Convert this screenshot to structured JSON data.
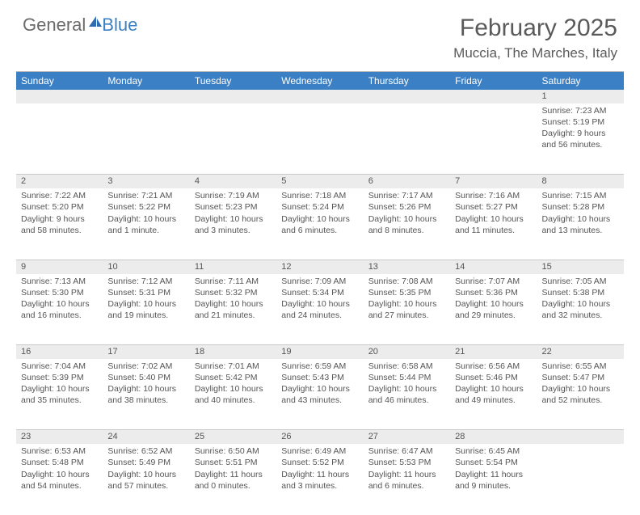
{
  "logo": {
    "text1": "General",
    "text2": "Blue"
  },
  "title": "February 2025",
  "location": "Muccia, The Marches, Italy",
  "weekdays": [
    "Sunday",
    "Monday",
    "Tuesday",
    "Wednesday",
    "Thursday",
    "Friday",
    "Saturday"
  ],
  "colors": {
    "header_bg": "#3b7fc4",
    "header_text": "#ffffff",
    "daynum_bg": "#ececec",
    "text": "#555555",
    "logo_gray": "#6b6b6b",
    "logo_blue": "#3b7fc4"
  },
  "weeks": [
    {
      "nums": [
        "",
        "",
        "",
        "",
        "",
        "",
        "1"
      ],
      "cells": [
        null,
        null,
        null,
        null,
        null,
        null,
        {
          "sunrise": "Sunrise: 7:23 AM",
          "sunset": "Sunset: 5:19 PM",
          "dl1": "Daylight: 9 hours",
          "dl2": "and 56 minutes."
        }
      ]
    },
    {
      "nums": [
        "2",
        "3",
        "4",
        "5",
        "6",
        "7",
        "8"
      ],
      "cells": [
        {
          "sunrise": "Sunrise: 7:22 AM",
          "sunset": "Sunset: 5:20 PM",
          "dl1": "Daylight: 9 hours",
          "dl2": "and 58 minutes."
        },
        {
          "sunrise": "Sunrise: 7:21 AM",
          "sunset": "Sunset: 5:22 PM",
          "dl1": "Daylight: 10 hours",
          "dl2": "and 1 minute."
        },
        {
          "sunrise": "Sunrise: 7:19 AM",
          "sunset": "Sunset: 5:23 PM",
          "dl1": "Daylight: 10 hours",
          "dl2": "and 3 minutes."
        },
        {
          "sunrise": "Sunrise: 7:18 AM",
          "sunset": "Sunset: 5:24 PM",
          "dl1": "Daylight: 10 hours",
          "dl2": "and 6 minutes."
        },
        {
          "sunrise": "Sunrise: 7:17 AM",
          "sunset": "Sunset: 5:26 PM",
          "dl1": "Daylight: 10 hours",
          "dl2": "and 8 minutes."
        },
        {
          "sunrise": "Sunrise: 7:16 AM",
          "sunset": "Sunset: 5:27 PM",
          "dl1": "Daylight: 10 hours",
          "dl2": "and 11 minutes."
        },
        {
          "sunrise": "Sunrise: 7:15 AM",
          "sunset": "Sunset: 5:28 PM",
          "dl1": "Daylight: 10 hours",
          "dl2": "and 13 minutes."
        }
      ]
    },
    {
      "nums": [
        "9",
        "10",
        "11",
        "12",
        "13",
        "14",
        "15"
      ],
      "cells": [
        {
          "sunrise": "Sunrise: 7:13 AM",
          "sunset": "Sunset: 5:30 PM",
          "dl1": "Daylight: 10 hours",
          "dl2": "and 16 minutes."
        },
        {
          "sunrise": "Sunrise: 7:12 AM",
          "sunset": "Sunset: 5:31 PM",
          "dl1": "Daylight: 10 hours",
          "dl2": "and 19 minutes."
        },
        {
          "sunrise": "Sunrise: 7:11 AM",
          "sunset": "Sunset: 5:32 PM",
          "dl1": "Daylight: 10 hours",
          "dl2": "and 21 minutes."
        },
        {
          "sunrise": "Sunrise: 7:09 AM",
          "sunset": "Sunset: 5:34 PM",
          "dl1": "Daylight: 10 hours",
          "dl2": "and 24 minutes."
        },
        {
          "sunrise": "Sunrise: 7:08 AM",
          "sunset": "Sunset: 5:35 PM",
          "dl1": "Daylight: 10 hours",
          "dl2": "and 27 minutes."
        },
        {
          "sunrise": "Sunrise: 7:07 AM",
          "sunset": "Sunset: 5:36 PM",
          "dl1": "Daylight: 10 hours",
          "dl2": "and 29 minutes."
        },
        {
          "sunrise": "Sunrise: 7:05 AM",
          "sunset": "Sunset: 5:38 PM",
          "dl1": "Daylight: 10 hours",
          "dl2": "and 32 minutes."
        }
      ]
    },
    {
      "nums": [
        "16",
        "17",
        "18",
        "19",
        "20",
        "21",
        "22"
      ],
      "cells": [
        {
          "sunrise": "Sunrise: 7:04 AM",
          "sunset": "Sunset: 5:39 PM",
          "dl1": "Daylight: 10 hours",
          "dl2": "and 35 minutes."
        },
        {
          "sunrise": "Sunrise: 7:02 AM",
          "sunset": "Sunset: 5:40 PM",
          "dl1": "Daylight: 10 hours",
          "dl2": "and 38 minutes."
        },
        {
          "sunrise": "Sunrise: 7:01 AM",
          "sunset": "Sunset: 5:42 PM",
          "dl1": "Daylight: 10 hours",
          "dl2": "and 40 minutes."
        },
        {
          "sunrise": "Sunrise: 6:59 AM",
          "sunset": "Sunset: 5:43 PM",
          "dl1": "Daylight: 10 hours",
          "dl2": "and 43 minutes."
        },
        {
          "sunrise": "Sunrise: 6:58 AM",
          "sunset": "Sunset: 5:44 PM",
          "dl1": "Daylight: 10 hours",
          "dl2": "and 46 minutes."
        },
        {
          "sunrise": "Sunrise: 6:56 AM",
          "sunset": "Sunset: 5:46 PM",
          "dl1": "Daylight: 10 hours",
          "dl2": "and 49 minutes."
        },
        {
          "sunrise": "Sunrise: 6:55 AM",
          "sunset": "Sunset: 5:47 PM",
          "dl1": "Daylight: 10 hours",
          "dl2": "and 52 minutes."
        }
      ]
    },
    {
      "nums": [
        "23",
        "24",
        "25",
        "26",
        "27",
        "28",
        ""
      ],
      "cells": [
        {
          "sunrise": "Sunrise: 6:53 AM",
          "sunset": "Sunset: 5:48 PM",
          "dl1": "Daylight: 10 hours",
          "dl2": "and 54 minutes."
        },
        {
          "sunrise": "Sunrise: 6:52 AM",
          "sunset": "Sunset: 5:49 PM",
          "dl1": "Daylight: 10 hours",
          "dl2": "and 57 minutes."
        },
        {
          "sunrise": "Sunrise: 6:50 AM",
          "sunset": "Sunset: 5:51 PM",
          "dl1": "Daylight: 11 hours",
          "dl2": "and 0 minutes."
        },
        {
          "sunrise": "Sunrise: 6:49 AM",
          "sunset": "Sunset: 5:52 PM",
          "dl1": "Daylight: 11 hours",
          "dl2": "and 3 minutes."
        },
        {
          "sunrise": "Sunrise: 6:47 AM",
          "sunset": "Sunset: 5:53 PM",
          "dl1": "Daylight: 11 hours",
          "dl2": "and 6 minutes."
        },
        {
          "sunrise": "Sunrise: 6:45 AM",
          "sunset": "Sunset: 5:54 PM",
          "dl1": "Daylight: 11 hours",
          "dl2": "and 9 minutes."
        },
        null
      ]
    }
  ]
}
